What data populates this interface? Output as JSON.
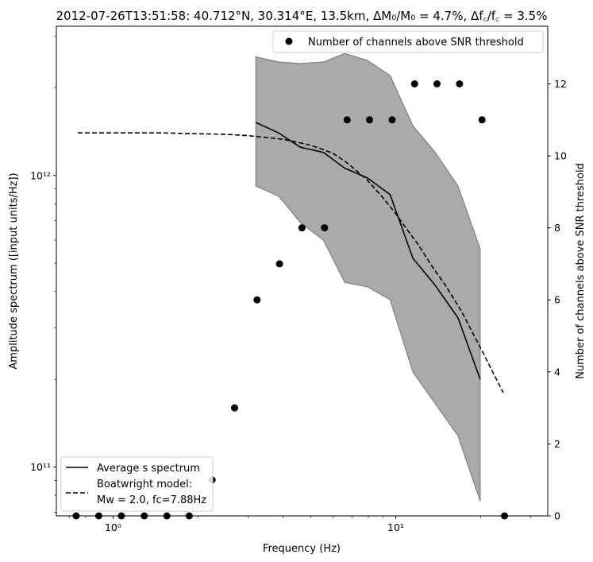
{
  "chart_data": {
    "type": "line",
    "title": "2012-07-26T13:51:58: 40.712°N, 30.314°E, 13.5km, ΔM₀/M₀ = 4.7%, Δf꜀/f꜀ = 3.5%",
    "xlabel": "Frequency (Hz)",
    "ylabel": "Amplitude spectrum ([input units/Hz])",
    "y2label": "Number of channels above SNR threshold",
    "xscale": "log",
    "yscale": "log",
    "xlim": [
      0.63,
      34.5
    ],
    "ylim": [
      68000000000.0,
      3250000000000.0
    ],
    "y2lim": [
      0,
      13.6
    ],
    "grid": false,
    "legend_loc": "lower-left",
    "x_ticks": [
      {
        "label": "10⁰",
        "value": 1
      },
      {
        "label": "10¹",
        "value": 10
      }
    ],
    "y_ticks": [
      {
        "label": "10¹¹",
        "value": 100000000000.0
      },
      {
        "label": "10¹²",
        "value": 1000000000000.0
      }
    ],
    "y2_ticks": [
      "0",
      "2",
      "4",
      "6",
      "8",
      "10",
      "12"
    ],
    "series": [
      {
        "name": "Average s spectrum",
        "style": "solid",
        "color": "#000000",
        "x": [
          3.2,
          3.85,
          4.6,
          5.55,
          6.6,
          7.95,
          9.55,
          11.5,
          13.8,
          16.6,
          19.9
        ],
        "y": [
          1520000000000.0,
          1400000000000.0,
          1250000000000.0,
          1200000000000.0,
          1060000000000.0,
          980000000000.0,
          860000000000.0,
          520000000000.0,
          420000000000.0,
          325000000000.0,
          200000000000.0
        ]
      },
      {
        "name": "Boatwright model:\nMw = 2.0, fc=7.88Hz",
        "legend_lines": [
          "Boatwright model:",
          "Mw = 2.0, fc=7.88Hz"
        ],
        "style": "dashed",
        "color": "#000000",
        "x": [
          0.75,
          1.0,
          1.5,
          2.0,
          2.5,
          3.0,
          3.5,
          4.0,
          4.5,
          5.0,
          5.5,
          6.0,
          6.6,
          7.0,
          7.88,
          9.0,
          10.0,
          11.0,
          12.0,
          13.5,
          15.0,
          17.0,
          20.0,
          24.0
        ],
        "y": [
          1400000000000.0,
          1400000000000.0,
          1400000000000.0,
          1390000000000.0,
          1385000000000.0,
          1370000000000.0,
          1350000000000.0,
          1330000000000.0,
          1300000000000.0,
          1270000000000.0,
          1230000000000.0,
          1190000000000.0,
          1120000000000.0,
          1070000000000.0,
          970000000000.0,
          840000000000.0,
          740000000000.0,
          650000000000.0,
          580000000000.0,
          485000000000.0,
          420000000000.0,
          345000000000.0,
          255000000000.0,
          180000000000.0
        ]
      },
      {
        "name": "Number of channels above SNR threshold",
        "style": "markers",
        "axis": "right",
        "color": "#000000",
        "x": [
          0.74,
          0.89,
          1.07,
          1.29,
          1.55,
          1.86,
          2.24,
          2.69,
          3.23,
          3.88,
          4.66,
          5.6,
          6.73,
          8.08,
          9.71,
          11.66,
          14.0,
          16.82,
          20.2,
          24.26
        ],
        "y": [
          0,
          0,
          0,
          0,
          0,
          0,
          1,
          3,
          6,
          7,
          8,
          8,
          11,
          11,
          11,
          12,
          12,
          12,
          11,
          0
        ]
      }
    ],
    "band": {
      "color": "#aaaaaa",
      "edge_color": "#808080",
      "x": [
        3.2,
        3.85,
        4.6,
        5.55,
        6.6,
        7.95,
        9.55,
        11.5,
        13.8,
        16.6,
        19.9
      ],
      "upper": [
        2550000000000.0,
        2450000000000.0,
        2420000000000.0,
        2450000000000.0,
        2620000000000.0,
        2480000000000.0,
        2200000000000.0,
        1480000000000.0,
        1200000000000.0,
        920000000000.0,
        560000000000.0
      ],
      "lower": [
        920000000000.0,
        850000000000.0,
        690000000000.0,
        600000000000.0,
        430000000000.0,
        415000000000.0,
        375000000000.0,
        212000000000.0,
        165000000000.0,
        128000000000.0,
        76500000000.0
      ]
    }
  }
}
